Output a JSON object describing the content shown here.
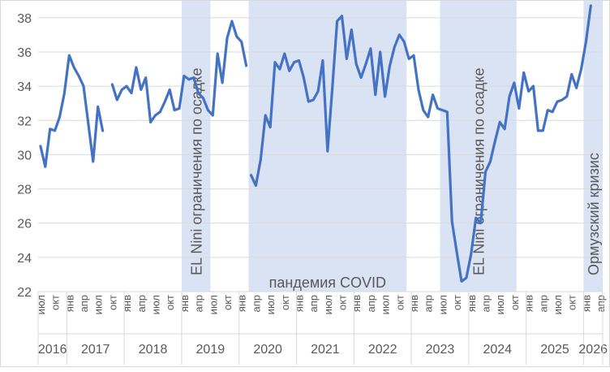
{
  "chart_data": {
    "type": "line",
    "title": "",
    "xlabel": "",
    "ylabel": "",
    "ylim": [
      22,
      39
    ],
    "yticks": [
      22,
      24,
      26,
      28,
      30,
      32,
      34,
      36,
      38
    ],
    "grid": "horizontal",
    "legend": "none",
    "line_color": "#4472C4",
    "band_color": "#DAE3F3",
    "x_start": "2016-07",
    "month_ticks": [
      {
        "month": "2016-07",
        "label": "июл"
      },
      {
        "month": "2016-10",
        "label": "окт"
      },
      {
        "month": "2017-01",
        "label": "янв"
      },
      {
        "month": "2017-04",
        "label": "апр"
      },
      {
        "month": "2017-07",
        "label": "июл"
      },
      {
        "month": "2017-10",
        "label": "окт"
      },
      {
        "month": "2018-01",
        "label": "янв"
      },
      {
        "month": "2018-04",
        "label": "апр"
      },
      {
        "month": "2018-07",
        "label": "июл"
      },
      {
        "month": "2018-10",
        "label": "окт"
      },
      {
        "month": "2019-01",
        "label": "янв"
      },
      {
        "month": "2019-04",
        "label": "апр"
      },
      {
        "month": "2019-07",
        "label": "июл"
      },
      {
        "month": "2019-10",
        "label": "окт"
      },
      {
        "month": "2020-01",
        "label": "янв"
      },
      {
        "month": "2020-04",
        "label": "апр"
      },
      {
        "month": "2020-07",
        "label": "июл"
      },
      {
        "month": "2020-10",
        "label": "окт"
      },
      {
        "month": "2021-01",
        "label": "янв"
      },
      {
        "month": "2021-04",
        "label": "апр"
      },
      {
        "month": "2021-07",
        "label": "июл"
      },
      {
        "month": "2021-10",
        "label": "окт"
      },
      {
        "month": "2022-01",
        "label": "янв"
      },
      {
        "month": "2022-04",
        "label": "апр"
      },
      {
        "month": "2022-07",
        "label": "июл"
      },
      {
        "month": "2022-10",
        "label": "окт"
      },
      {
        "month": "2023-01",
        "label": "янв"
      },
      {
        "month": "2023-04",
        "label": "апр"
      },
      {
        "month": "2023-07",
        "label": "июл"
      },
      {
        "month": "2023-10",
        "label": "окт"
      },
      {
        "month": "2024-01",
        "label": "янв"
      },
      {
        "month": "2024-04",
        "label": "апр"
      },
      {
        "month": "2024-07",
        "label": "июл"
      },
      {
        "month": "2024-10",
        "label": "окт"
      },
      {
        "month": "2025-01",
        "label": "янв"
      },
      {
        "month": "2025-04",
        "label": "апр"
      },
      {
        "month": "2025-07",
        "label": "июл"
      },
      {
        "month": "2025-10",
        "label": "окт"
      },
      {
        "month": "2026-01",
        "label": "янв"
      },
      {
        "month": "2026-04",
        "label": "апр"
      }
    ],
    "years": [
      {
        "label": "2016",
        "from": "2016-07",
        "to": "2016-12"
      },
      {
        "label": "2017",
        "from": "2017-01",
        "to": "2017-12"
      },
      {
        "label": "2018",
        "from": "2018-01",
        "to": "2018-12"
      },
      {
        "label": "2019",
        "from": "2019-01",
        "to": "2019-12"
      },
      {
        "label": "2020",
        "from": "2020-01",
        "to": "2020-12"
      },
      {
        "label": "2021",
        "from": "2021-01",
        "to": "2021-12"
      },
      {
        "label": "2022",
        "from": "2022-01",
        "to": "2022-12"
      },
      {
        "label": "2023",
        "from": "2023-01",
        "to": "2023-12"
      },
      {
        "label": "2024",
        "from": "2024-01",
        "to": "2024-12"
      },
      {
        "label": "2025",
        "from": "2025-01",
        "to": "2025-12"
      },
      {
        "label": "2026",
        "from": "2026-01",
        "to": "2026-04"
      }
    ],
    "bands": [
      {
        "label": "EL Nini ограничения по осадке",
        "from": "2019-01",
        "to": "2019-06",
        "label_style": "vertical"
      },
      {
        "label": "пандемия COVID",
        "from": "2020-03",
        "to": "2022-11",
        "label_style": "bottom"
      },
      {
        "label": "EL Nini ограничения по осадке",
        "from": "2023-07",
        "to": "2024-10",
        "label_style": "vertical"
      },
      {
        "label": "Ормузский кризис",
        "from": "2026-01",
        "to": "2026-04",
        "label_style": "vertical"
      }
    ],
    "segments": [
      {
        "start": "2016-07",
        "values": [
          30.5,
          29.3,
          31.5,
          31.4,
          32.2,
          33.6,
          35.8,
          35.1,
          34.6,
          34.0,
          31.8,
          29.6,
          32.8,
          31.4
        ]
      },
      {
        "start": "2017-10",
        "values": [
          34.1,
          33.2,
          33.8,
          34.0,
          33.6,
          35.1,
          33.8,
          34.5,
          31.9,
          32.3,
          32.5,
          33.1,
          33.8,
          32.6,
          32.7,
          34.6,
          34.4,
          34.5,
          33.6,
          33.3,
          32.6,
          32.3,
          35.9,
          34.2,
          36.8,
          37.8,
          36.9,
          36.6,
          35.2
        ]
      },
      {
        "start": "2020-03",
        "values": [
          28.8,
          28.2,
          29.7,
          32.3,
          31.6,
          35.4,
          35.0,
          35.9,
          34.9,
          35.4,
          35.5,
          34.5,
          33.1,
          33.2,
          33.7,
          35.5,
          30.2,
          33.9,
          37.8,
          38.1,
          35.6,
          37.3,
          35.3,
          34.5,
          35.3,
          36.2,
          33.5,
          36.0,
          33.4,
          35.2,
          36.3,
          37.0,
          36.6,
          35.6,
          35.8,
          33.8,
          32.6,
          32.2,
          33.5,
          32.7,
          32.6,
          32.5,
          26.1,
          24.3,
          22.6,
          22.8,
          24.2,
          26.3,
          26.0,
          29.0,
          29.6,
          30.8,
          31.9,
          31.5,
          33.4,
          34.2,
          32.7,
          34.8,
          33.7,
          34.0,
          31.4,
          31.4,
          32.6,
          32.5,
          33.1,
          33.2,
          33.4,
          34.7,
          33.9,
          35.0,
          36.6,
          38.7
        ]
      }
    ]
  }
}
